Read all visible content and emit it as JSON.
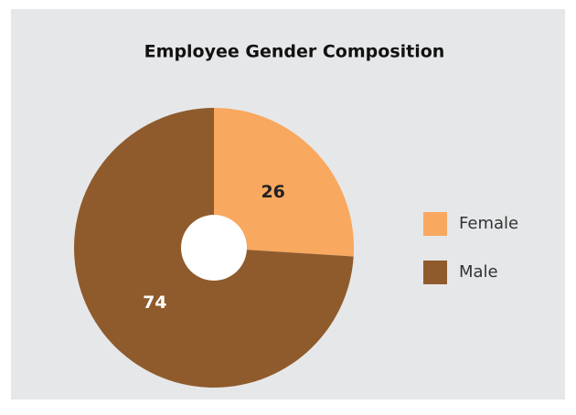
{
  "chart_data": {
    "type": "pie",
    "title": "Employee Gender Composition",
    "categories": [
      "Female",
      "Male"
    ],
    "values": [
      26,
      74
    ],
    "colors": [
      "#f9a85f",
      "#8f5b2c"
    ],
    "donut": true,
    "legend": "right"
  }
}
